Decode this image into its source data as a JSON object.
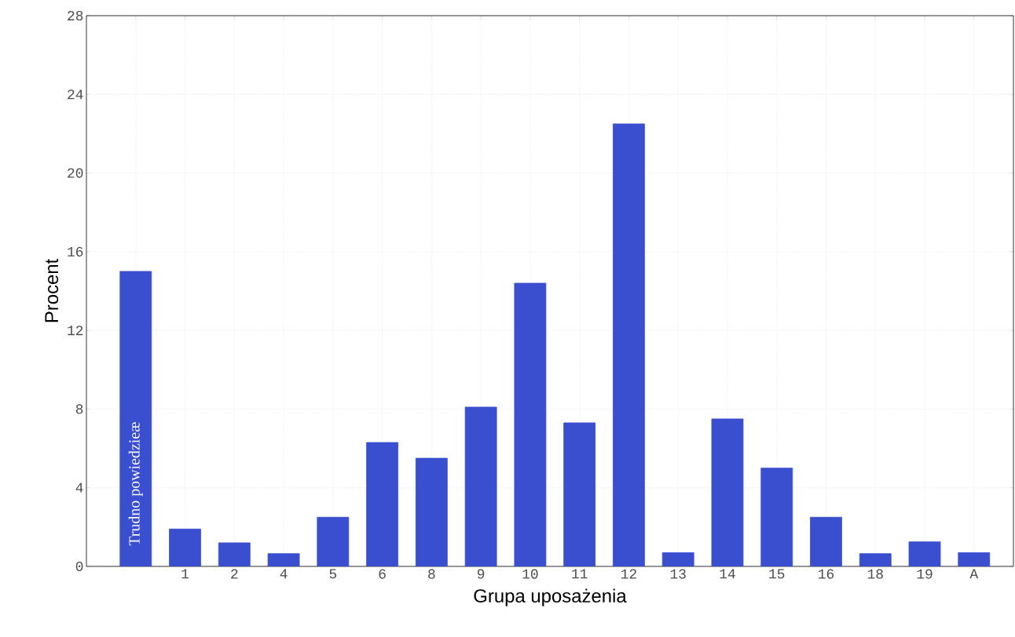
{
  "chart_data": {
    "type": "bar",
    "xlabel": "Grupa uposażenia",
    "ylabel": "Procent",
    "categories": [
      "Trudno powiedzieæ",
      "1",
      "2",
      "4",
      "5",
      "6",
      "8",
      "9",
      "10",
      "11",
      "12",
      "13",
      "14",
      "15",
      "16",
      "18",
      "19",
      "A"
    ],
    "values": [
      15.0,
      1.9,
      1.2,
      0.65,
      2.5,
      6.3,
      5.5,
      8.1,
      14.4,
      7.3,
      22.5,
      0.7,
      7.5,
      5.0,
      2.5,
      0.65,
      1.25,
      0.7
    ],
    "color": "#3a4fd0",
    "ylim": [
      0,
      28
    ],
    "yticks": [
      0,
      4,
      8,
      12,
      16,
      20,
      24,
      28
    ],
    "grid": true
  }
}
